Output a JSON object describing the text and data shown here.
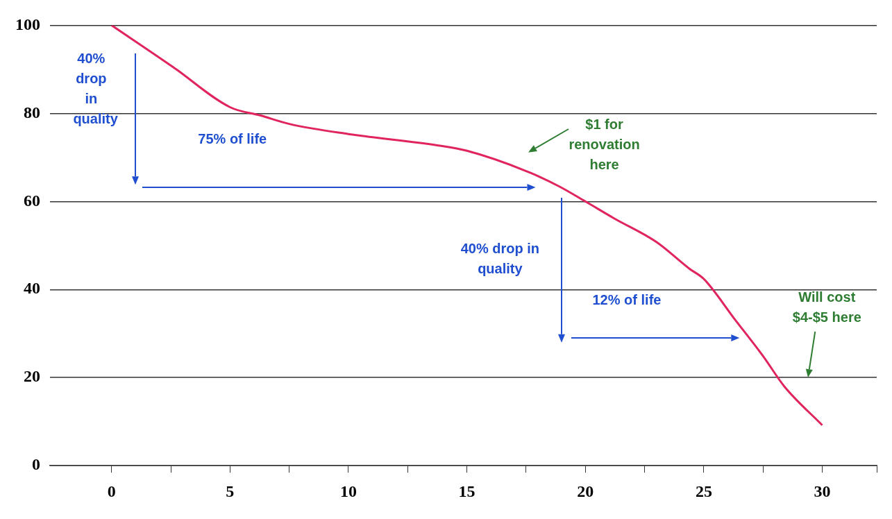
{
  "chart_data": {
    "type": "line",
    "x": [
      0,
      2.6,
      5,
      6.3,
      7.5,
      10,
      13.8,
      15,
      17.5,
      18.9,
      20,
      21.2,
      23,
      24.4,
      25,
      26.3,
      27.5,
      28.4,
      30
    ],
    "series": [
      {
        "color": "#e0245e",
        "values": [
          100,
          90.5,
          81.4,
          79.5,
          77.6,
          75.3,
          72.7,
          71.5,
          66.9,
          63.4,
          60,
          56.2,
          50.8,
          44.7,
          42.4,
          33.3,
          24.9,
          18,
          9.2
        ]
      }
    ],
    "xlim": [
      -2.6,
      32.3
    ],
    "xticks": [
      0,
      {
        "value": 2.5,
        "label": null
      },
      5,
      {
        "value": 7.5,
        "label": null
      },
      10,
      {
        "value": 12.5,
        "label": null
      },
      15,
      {
        "value": 17.5,
        "label": null
      },
      20,
      {
        "value": 22.5,
        "label": null
      },
      25,
      {
        "value": 27.5,
        "label": null
      },
      30,
      {
        "value": 32.3,
        "label": null
      }
    ],
    "ylim": [
      0,
      100
    ],
    "yticks": [
      0,
      20,
      40,
      60,
      80,
      100
    ],
    "grid": "y",
    "legend": false,
    "marker": "none",
    "line_style": "solid",
    "annotations": [
      "40% drop in quality",
      "75% of life",
      "40% drop in quality",
      "12% of life",
      "$1 for renovation here",
      "Will cost $4-$5 here"
    ]
  }
}
